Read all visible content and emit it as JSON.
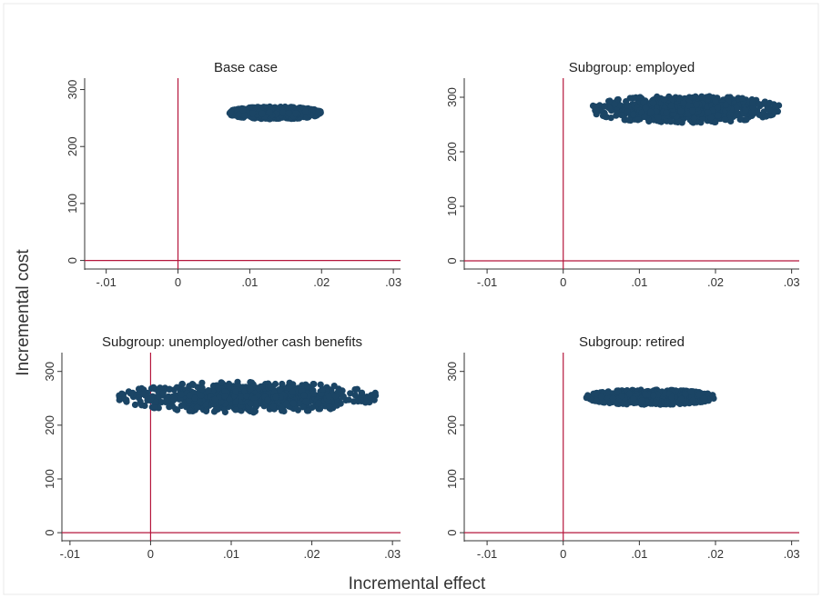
{
  "figure": {
    "ylabel": "Incremental cost",
    "xlabel": "Incremental effect",
    "colors": {
      "points": "#1b4565",
      "reference_lines": "#b5163c",
      "axis": "#333333",
      "frame": "#e8e8e8"
    }
  },
  "chart_data": [
    {
      "type": "scatter",
      "title": "Base case",
      "xlim": [
        -0.013,
        0.031
      ],
      "ylim": [
        -15,
        320
      ],
      "xticks": [
        -0.01,
        0,
        0.01,
        0.02,
        0.03
      ],
      "xtick_labels": [
        "-.01",
        "0",
        ".01",
        ".02",
        ".03"
      ],
      "yticks": [
        0,
        100,
        200,
        300
      ],
      "ytick_labels": [
        "0",
        "100",
        "200",
        "300"
      ],
      "reference_lines": {
        "x": 0,
        "y": 0
      },
      "cloud": {
        "x_range": [
          0.007,
          0.02
        ],
        "y_range": [
          248,
          270
        ],
        "center": [
          0.0135,
          259
        ]
      }
    },
    {
      "type": "scatter",
      "title": "Subgroup: employed",
      "xlim": [
        -0.013,
        0.031
      ],
      "ylim": [
        -15,
        335
      ],
      "xticks": [
        -0.01,
        0,
        0.01,
        0.02,
        0.03
      ],
      "xtick_labels": [
        "-.01",
        "0",
        ".01",
        ".02",
        ".03"
      ],
      "yticks": [
        0,
        100,
        200,
        300
      ],
      "ytick_labels": [
        "0",
        "100",
        "200",
        "300"
      ],
      "reference_lines": {
        "x": 0,
        "y": 0
      },
      "cloud": {
        "x_range": [
          0.004,
          0.029
        ],
        "y_range": [
          255,
          305
        ],
        "center": [
          0.016,
          278
        ]
      }
    },
    {
      "type": "scatter",
      "title": "Subgroup: unemployed/other cash benefits",
      "xlim": [
        -0.011,
        0.031
      ],
      "ylim": [
        -15,
        335
      ],
      "xticks": [
        -0.01,
        0,
        0.01,
        0.02,
        0.03
      ],
      "xtick_labels": [
        "-.01",
        "0",
        ".01",
        ".02",
        ".03"
      ],
      "yticks": [
        0,
        100,
        200,
        300
      ],
      "ytick_labels": [
        "0",
        "100",
        "200",
        "300"
      ],
      "reference_lines": {
        "x": 0,
        "y": 0
      },
      "cloud": {
        "x_range": [
          -0.004,
          0.028
        ],
        "y_range": [
          228,
          285
        ],
        "center": [
          0.012,
          252
        ]
      }
    },
    {
      "type": "scatter",
      "title": "Subgroup: retired",
      "xlim": [
        -0.013,
        0.031
      ],
      "ylim": [
        -15,
        335
      ],
      "xticks": [
        -0.01,
        0,
        0.01,
        0.02,
        0.03
      ],
      "xtick_labels": [
        "-.01",
        "0",
        ".01",
        ".02",
        ".03"
      ],
      "yticks": [
        0,
        100,
        200,
        300
      ],
      "ytick_labels": [
        "0",
        "100",
        "200",
        "300"
      ],
      "reference_lines": {
        "x": 0,
        "y": 0
      },
      "cloud": {
        "x_range": [
          0.004,
          0.021
        ],
        "y_range": [
          240,
          268
        ],
        "center": [
          0.0115,
          252
        ]
      }
    }
  ]
}
